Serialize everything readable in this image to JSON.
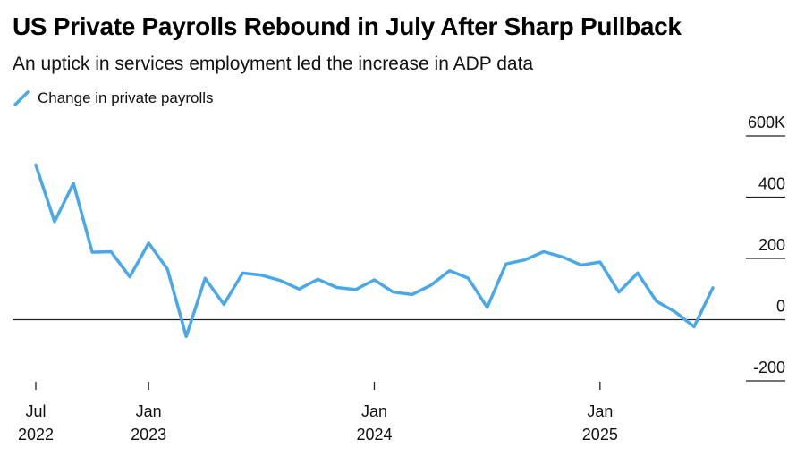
{
  "title": "US Private Payrolls Rebound in July After Sharp Pullback",
  "subtitle": "An uptick in services employment led the increase in ADP data",
  "chart_data": {
    "type": "line",
    "legend": {
      "placement": "top-left",
      "entries": [
        "Change in private payrolls"
      ]
    },
    "series": [
      {
        "name": "Change in private payrolls",
        "color": "#4aa8e8",
        "x": [
          "2022-07",
          "2022-08",
          "2022-09",
          "2022-10",
          "2022-11",
          "2022-12",
          "2023-01",
          "2023-02",
          "2023-03",
          "2023-04",
          "2023-05",
          "2023-06",
          "2023-07",
          "2023-08",
          "2023-09",
          "2023-10",
          "2023-11",
          "2023-12",
          "2024-01",
          "2024-02",
          "2024-03",
          "2024-04",
          "2024-05",
          "2024-06",
          "2024-07",
          "2024-08",
          "2024-09",
          "2024-10",
          "2024-11",
          "2024-12",
          "2025-01",
          "2025-02",
          "2025-03",
          "2025-04",
          "2025-05",
          "2025-06",
          "2025-07"
        ],
        "values": [
          505,
          320,
          445,
          220,
          222,
          140,
          250,
          165,
          -55,
          135,
          50,
          152,
          145,
          128,
          100,
          132,
          105,
          98,
          130,
          90,
          82,
          112,
          160,
          135,
          40,
          182,
          195,
          222,
          205,
          178,
          188,
          90,
          152,
          60,
          25,
          -23,
          104
        ]
      }
    ],
    "y_axis": {
      "range": [
        -200,
        600
      ],
      "ticks": [
        600,
        400,
        200,
        0,
        -200
      ],
      "tick_labels": [
        "600K",
        "400",
        "200",
        "0",
        "-200"
      ],
      "position": "right"
    },
    "x_axis": {
      "ticks": [
        {
          "x": "2022-07",
          "line1": "Jul",
          "line2": "2022"
        },
        {
          "x": "2023-01",
          "line1": "Jan",
          "line2": "2023"
        },
        {
          "x": "2024-01",
          "line1": "Jan",
          "line2": "2024"
        },
        {
          "x": "2025-01",
          "line1": "Jan",
          "line2": "2025"
        }
      ]
    },
    "zero_line": true,
    "grid": false
  }
}
